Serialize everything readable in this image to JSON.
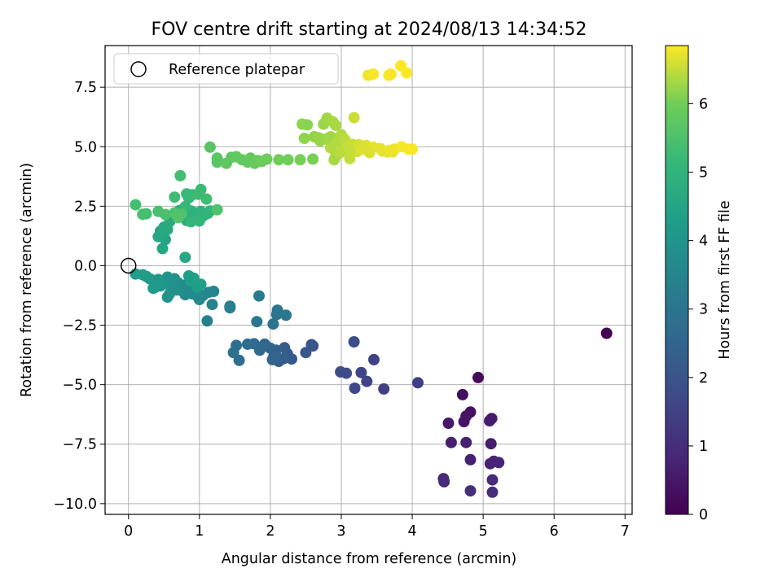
{
  "chart_data": {
    "type": "scatter",
    "title": "FOV centre drift starting at 2024/08/13 14:34:52",
    "xlabel": "Angular distance from reference (arcmin)",
    "ylabel": "Rotation from reference (arcmin)",
    "xlim": [
      -0.33,
      7.1
    ],
    "ylim": [
      -10.45,
      9.25
    ],
    "xticks": [
      "0",
      "1",
      "2",
      "3",
      "4",
      "5",
      "6",
      "7"
    ],
    "yticks": [
      "7.5",
      "5.0",
      "2.5",
      "0.0",
      "−2.5",
      "−5.0",
      "−7.5",
      "−10.0"
    ],
    "grid": true,
    "legend": {
      "label": "Reference platepar",
      "placement": "top-left"
    },
    "reference_point": {
      "x": 0,
      "y": 0
    },
    "colorbar": {
      "label": "Hours from first FF file",
      "range": [
        0,
        6.85
      ],
      "ticks": [
        "0",
        "1",
        "2",
        "3",
        "4",
        "5",
        "6"
      ],
      "colormap": "viridis"
    },
    "points": [
      [
        6.74,
        -2.84,
        0.0
      ],
      [
        4.93,
        -4.7,
        0.2
      ],
      [
        4.71,
        -5.42,
        0.3
      ],
      [
        4.82,
        -6.15,
        0.35
      ],
      [
        4.76,
        -6.32,
        0.4
      ],
      [
        4.73,
        -6.55,
        0.45
      ],
      [
        4.51,
        -6.62,
        0.5
      ],
      [
        5.12,
        -6.42,
        0.55
      ],
      [
        5.09,
        -6.52,
        0.6
      ],
      [
        5.11,
        -7.48,
        0.6
      ],
      [
        4.55,
        -7.43,
        0.65
      ],
      [
        4.76,
        -7.43,
        0.7
      ],
      [
        4.82,
        -8.15,
        0.7
      ],
      [
        5.1,
        -8.32,
        0.75
      ],
      [
        5.15,
        -8.22,
        0.8
      ],
      [
        5.22,
        -8.27,
        0.8
      ],
      [
        4.44,
        -8.95,
        0.85
      ],
      [
        4.45,
        -9.08,
        0.9
      ],
      [
        5.13,
        -9.0,
        0.9
      ],
      [
        4.82,
        -9.46,
        1.0
      ],
      [
        5.13,
        -9.52,
        1.0
      ],
      [
        4.08,
        -4.92,
        1.4
      ],
      [
        3.6,
        -5.18,
        1.45
      ],
      [
        3.46,
        -3.95,
        1.5
      ],
      [
        3.36,
        -4.86,
        1.55
      ],
      [
        3.28,
        -4.49,
        1.6
      ],
      [
        3.19,
        -5.15,
        1.65
      ],
      [
        3.07,
        -4.52,
        1.7
      ],
      [
        2.99,
        -4.46,
        1.75
      ],
      [
        3.18,
        -3.2,
        1.8
      ],
      [
        2.6,
        -3.37,
        2.0
      ],
      [
        2.58,
        -3.32,
        2.05
      ],
      [
        2.5,
        -3.65,
        2.1
      ],
      [
        2.3,
        -3.92,
        2.15
      ],
      [
        2.24,
        -3.7,
        2.2
      ],
      [
        2.2,
        -3.45,
        2.25
      ],
      [
        2.19,
        -3.9,
        2.3
      ],
      [
        2.12,
        -4.02,
        2.35
      ],
      [
        2.05,
        -3.82,
        2.4
      ],
      [
        2.08,
        -3.55,
        2.4
      ],
      [
        2.03,
        -3.95,
        2.45
      ],
      [
        2.0,
        -3.47,
        2.5
      ],
      [
        1.92,
        -3.3,
        2.55
      ],
      [
        1.85,
        -3.55,
        2.6
      ],
      [
        1.88,
        -3.42,
        2.6
      ],
      [
        1.77,
        -3.28,
        2.65
      ],
      [
        1.68,
        -3.3,
        2.7
      ],
      [
        1.56,
        -3.98,
        2.75
      ],
      [
        1.52,
        -3.35,
        2.8
      ],
      [
        1.48,
        -3.65,
        2.85
      ],
      [
        2.04,
        -2.45,
        2.9
      ],
      [
        2.09,
        -2.05,
        2.95
      ],
      [
        2.1,
        -1.87,
        3.0
      ],
      [
        2.22,
        -2.08,
        3.05
      ],
      [
        1.81,
        -2.35,
        3.1
      ],
      [
        1.84,
        -1.27,
        3.15
      ],
      [
        1.43,
        -1.77,
        3.3
      ],
      [
        1.43,
        -1.7,
        3.35
      ],
      [
        1.11,
        -2.32,
        3.4
      ],
      [
        1.18,
        -1.63,
        3.45
      ],
      [
        1.2,
        -1.08,
        3.5
      ],
      [
        1.13,
        -1.12,
        3.5
      ],
      [
        1.05,
        -1.25,
        3.55
      ],
      [
        1.0,
        -1.42,
        3.6
      ],
      [
        0.97,
        -1.28,
        3.6
      ],
      [
        0.95,
        -1.08,
        3.65
      ],
      [
        0.9,
        -1.18,
        3.65
      ],
      [
        0.86,
        -0.95,
        3.7
      ],
      [
        0.8,
        -1.22,
        3.7
      ],
      [
        0.78,
        -0.82,
        3.75
      ],
      [
        0.75,
        -1.05,
        3.75
      ],
      [
        0.72,
        -0.88,
        3.8
      ],
      [
        0.7,
        -0.72,
        3.8
      ],
      [
        0.68,
        -1.02,
        3.85
      ],
      [
        0.65,
        -0.55,
        3.85
      ],
      [
        0.62,
        -0.95,
        3.9
      ],
      [
        0.6,
        -0.65,
        3.9
      ],
      [
        0.58,
        -1.18,
        3.95
      ],
      [
        0.55,
        -0.48,
        3.95
      ],
      [
        0.52,
        -0.75,
        4.0
      ],
      [
        0.5,
        -0.62,
        4.0
      ],
      [
        0.45,
        -0.85,
        4.05
      ],
      [
        0.42,
        -0.58,
        4.1
      ],
      [
        0.38,
        -0.9,
        4.1
      ],
      [
        0.35,
        -0.95,
        4.15
      ],
      [
        0.3,
        -0.55,
        4.2
      ],
      [
        0.25,
        -0.45,
        4.2
      ],
      [
        0.2,
        -0.38,
        4.25
      ],
      [
        0.1,
        -0.35,
        4.3
      ],
      [
        0.88,
        -0.65,
        4.35
      ],
      [
        0.92,
        -0.52,
        4.4
      ],
      [
        1.02,
        -0.78,
        4.35
      ],
      [
        0.97,
        -0.9,
        4.3
      ],
      [
        0.55,
        -1.32,
        4.0
      ],
      [
        0.85,
        -0.43,
        4.3
      ],
      [
        0.8,
        0.35,
        4.6
      ],
      [
        0.52,
        1.1,
        4.5
      ],
      [
        0.48,
        0.72,
        4.55
      ],
      [
        0.42,
        1.22,
        4.6
      ],
      [
        0.45,
        1.45,
        4.6
      ],
      [
        0.5,
        1.62,
        4.65
      ],
      [
        0.55,
        1.52,
        4.65
      ],
      [
        0.58,
        1.85,
        4.7
      ],
      [
        0.62,
        2.02,
        4.7
      ],
      [
        0.68,
        2.1,
        4.75
      ],
      [
        0.72,
        2.32,
        4.75
      ],
      [
        0.78,
        2.05,
        4.8
      ],
      [
        0.82,
        1.9,
        4.8
      ],
      [
        0.85,
        2.15,
        4.85
      ],
      [
        0.88,
        2.3,
        4.85
      ],
      [
        0.92,
        2.02,
        4.9
      ],
      [
        0.95,
        2.22,
        4.9
      ],
      [
        0.98,
        2.1,
        4.95
      ],
      [
        1.02,
        2.28,
        4.95
      ],
      [
        1.05,
        2.08,
        5.0
      ],
      [
        1.08,
        2.15,
        5.0
      ],
      [
        1.12,
        2.2,
        5.05
      ],
      [
        1.15,
        2.3,
        5.05
      ],
      [
        1.0,
        1.88,
        5.1
      ],
      [
        0.88,
        1.85,
        5.1
      ],
      [
        0.8,
        2.48,
        5.15
      ],
      [
        0.85,
        2.85,
        5.15
      ],
      [
        0.82,
        3.02,
        5.2
      ],
      [
        0.9,
        2.98,
        5.2
      ],
      [
        0.98,
        3.0,
        5.25
      ],
      [
        1.02,
        3.2,
        5.25
      ],
      [
        1.1,
        2.8,
        5.3
      ],
      [
        0.65,
        2.88,
        5.3
      ],
      [
        0.73,
        3.78,
        5.35
      ],
      [
        0.25,
        2.18,
        5.35
      ],
      [
        0.1,
        2.56,
        5.4
      ],
      [
        0.2,
        2.16,
        5.4
      ],
      [
        0.42,
        2.28,
        5.45
      ],
      [
        0.52,
        2.15,
        5.45
      ],
      [
        0.65,
        2.22,
        5.5
      ],
      [
        0.75,
        2.18,
        5.5
      ],
      [
        1.25,
        2.35,
        5.55
      ],
      [
        0.7,
        2.02,
        5.6
      ],
      [
        1.15,
        4.98,
        5.65
      ],
      [
        1.25,
        4.52,
        5.7
      ],
      [
        1.25,
        4.35,
        5.7
      ],
      [
        1.38,
        4.3,
        5.75
      ],
      [
        1.45,
        4.55,
        5.75
      ],
      [
        1.52,
        4.58,
        5.8
      ],
      [
        1.6,
        4.45,
        5.8
      ],
      [
        1.68,
        4.35,
        5.85
      ],
      [
        1.72,
        4.52,
        5.85
      ],
      [
        1.78,
        4.3,
        5.9
      ],
      [
        1.82,
        4.42,
        5.9
      ],
      [
        1.88,
        4.38,
        5.95
      ],
      [
        1.95,
        4.48,
        5.95
      ],
      [
        2.12,
        4.45,
        6.0
      ],
      [
        2.25,
        4.45,
        6.0
      ],
      [
        2.42,
        4.45,
        6.05
      ],
      [
        2.6,
        4.48,
        6.05
      ],
      [
        2.45,
        5.95,
        6.15
      ],
      [
        2.52,
        5.92,
        6.15
      ],
      [
        2.48,
        5.35,
        6.2
      ],
      [
        2.62,
        5.42,
        6.2
      ],
      [
        2.7,
        5.25,
        6.25
      ],
      [
        2.75,
        5.95,
        6.25
      ],
      [
        2.8,
        6.2,
        6.3
      ],
      [
        2.85,
        5.42,
        6.3
      ],
      [
        2.88,
        6.05,
        6.35
      ],
      [
        2.92,
        5.9,
        6.35
      ],
      [
        2.95,
        5.2,
        6.4
      ],
      [
        3.0,
        5.5,
        6.4
      ],
      [
        3.02,
        4.8,
        6.45
      ],
      [
        3.05,
        5.3,
        6.45
      ],
      [
        3.08,
        4.98,
        6.5
      ],
      [
        3.12,
        4.5,
        6.5
      ],
      [
        3.15,
        5.1,
        6.55
      ],
      [
        3.18,
        6.22,
        6.55
      ],
      [
        3.22,
        4.8,
        6.6
      ],
      [
        3.25,
        5.08,
        6.6
      ],
      [
        3.3,
        4.9,
        6.65
      ],
      [
        3.35,
        5.05,
        6.65
      ],
      [
        3.45,
        4.98,
        6.7
      ],
      [
        3.55,
        4.92,
        6.7
      ],
      [
        3.68,
        4.85,
        6.75
      ],
      [
        3.75,
        4.9,
        6.75
      ],
      [
        3.85,
        5.0,
        6.8
      ],
      [
        3.95,
        4.9,
        6.8
      ],
      [
        2.92,
        4.6,
        6.4
      ],
      [
        2.9,
        4.45,
        6.35
      ],
      [
        2.85,
        4.95,
        6.4
      ],
      [
        2.98,
        4.75,
        6.45
      ],
      [
        3.12,
        4.85,
        6.5
      ],
      [
        3.4,
        4.75,
        6.65
      ],
      [
        3.58,
        4.82,
        6.7
      ],
      [
        3.65,
        4.78,
        6.72
      ],
      [
        3.72,
        4.78,
        6.75
      ],
      [
        4.0,
        4.9,
        6.82
      ],
      [
        2.78,
        5.32,
        6.3
      ],
      [
        2.68,
        5.38,
        6.25
      ],
      [
        3.38,
        8.0,
        6.78
      ],
      [
        3.45,
        8.05,
        6.8
      ],
      [
        3.67,
        8.0,
        6.82
      ],
      [
        3.7,
        8.05,
        6.83
      ],
      [
        3.84,
        8.4,
        6.84
      ],
      [
        3.92,
        8.1,
        6.85
      ]
    ]
  }
}
